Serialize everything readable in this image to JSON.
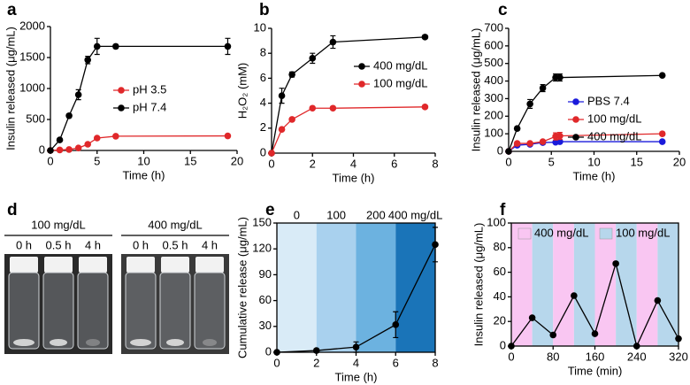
{
  "chart_data": [
    {
      "type": "line",
      "panel": "a",
      "x_label": "Time (h)",
      "y_label": "Insulin released (μg/mL)",
      "xlim": [
        0,
        20
      ],
      "xticks": [
        0,
        5,
        10,
        15,
        20
      ],
      "ylim": [
        0,
        2000
      ],
      "yticks": [
        0,
        500,
        1000,
        1500,
        2000
      ],
      "series": [
        {
          "name": "pH 3.5",
          "color": "#e0282a",
          "x": [
            0,
            1,
            2,
            3,
            4,
            5,
            7,
            19
          ],
          "values": [
            0,
            8,
            15,
            40,
            100,
            200,
            230,
            235
          ],
          "errors": [
            0,
            5,
            5,
            10,
            10,
            20,
            10,
            10
          ]
        },
        {
          "name": "pH 7.4",
          "color": "#000000",
          "x": [
            0,
            1,
            2,
            3,
            4,
            5,
            7,
            19
          ],
          "values": [
            0,
            170,
            560,
            900,
            1460,
            1680,
            1680,
            1680
          ],
          "errors": [
            0,
            20,
            30,
            80,
            60,
            130,
            30,
            130
          ]
        }
      ]
    },
    {
      "type": "line",
      "panel": "b",
      "x_label": "Time (h)",
      "y_label": "H₂O₂ (mM)",
      "xlim": [
        0,
        8
      ],
      "xticks": [
        0,
        2,
        4,
        6,
        8
      ],
      "ylim": [
        0,
        10
      ],
      "yticks": [
        0,
        2,
        4,
        6,
        8,
        10
      ],
      "series": [
        {
          "name": "400 mg/dL",
          "color": "#000000",
          "x": [
            0,
            0.5,
            1,
            2,
            3,
            7.5
          ],
          "values": [
            0,
            4.6,
            6.3,
            7.6,
            8.9,
            9.3
          ],
          "errors": [
            0,
            0.6,
            0.2,
            0.4,
            0.5,
            0.1
          ]
        },
        {
          "name": "100 mg/dL",
          "color": "#e0282a",
          "x": [
            0,
            0.5,
            1,
            2,
            3,
            7.5
          ],
          "values": [
            0,
            1.9,
            2.7,
            3.6,
            3.6,
            3.7
          ],
          "errors": [
            0,
            0.1,
            0.1,
            0.1,
            0.1,
            0.1
          ]
        }
      ]
    },
    {
      "type": "line",
      "panel": "c",
      "x_label": "Time (h)",
      "y_label": "Insulin released (μg/mL)",
      "xlim": [
        0,
        20
      ],
      "xticks": [
        0,
        5,
        10,
        15,
        20
      ],
      "ylim": [
        0,
        700
      ],
      "yticks": [
        0,
        100,
        200,
        300,
        400,
        500,
        600,
        700
      ],
      "series": [
        {
          "name": "PBS 7.4",
          "color": "#1a1adb",
          "x": [
            0,
            1,
            2.5,
            4,
            5.5,
            6,
            18
          ],
          "values": [
            0,
            35,
            40,
            50,
            52,
            55,
            55
          ],
          "errors": [
            0,
            5,
            5,
            10,
            8,
            8,
            5
          ]
        },
        {
          "name": "100 mg/dL",
          "color": "#e0282a",
          "x": [
            0,
            1,
            2.5,
            4,
            5.5,
            6,
            18
          ],
          "values": [
            0,
            45,
            45,
            55,
            85,
            88,
            100
          ],
          "errors": [
            0,
            8,
            8,
            8,
            20,
            20,
            10
          ]
        },
        {
          "name": "400 mg/dL",
          "color": "#000000",
          "x": [
            0,
            1,
            2.5,
            4,
            5.5,
            6,
            18
          ],
          "values": [
            0,
            130,
            270,
            360,
            420,
            420,
            432
          ],
          "errors": [
            0,
            10,
            25,
            20,
            20,
            20,
            5
          ]
        }
      ]
    },
    {
      "type": "photo",
      "panel": "d",
      "groups": [
        {
          "label": "100 mg/dL",
          "vials": [
            "0 h",
            "0.5 h",
            "4 h"
          ]
        },
        {
          "label": "400 mg/dL",
          "vials": [
            "0 h",
            "0.5 h",
            "4 h"
          ]
        }
      ]
    },
    {
      "type": "line",
      "panel": "e",
      "x_label": "Time (h)",
      "y_label": "Cumulative release (μg/mL)",
      "xlim": [
        0,
        8
      ],
      "xticks": [
        0,
        2,
        4,
        6,
        8
      ],
      "ylim": [
        0,
        150
      ],
      "yticks": [
        0,
        30,
        60,
        90,
        120,
        150
      ],
      "band_edges": [
        0,
        2,
        4,
        6,
        8
      ],
      "band_labels": [
        "0",
        "100",
        "200",
        "400 mg/dL"
      ],
      "band_colors": [
        "#d9ebf7",
        "#a9d1ee",
        "#6cb2e0",
        "#1a74b8"
      ],
      "series": [
        {
          "color": "#000000",
          "x": [
            0,
            2,
            4,
            6,
            8
          ],
          "values": [
            0,
            2,
            6,
            32,
            125
          ],
          "errors": [
            0,
            2,
            6,
            15,
            20
          ]
        }
      ]
    },
    {
      "type": "line",
      "panel": "f",
      "x_label": "Time (min)",
      "y_label": "Insulin released (μg/mL)",
      "xlim": [
        0,
        320
      ],
      "xticks": [
        0,
        80,
        160,
        240,
        320
      ],
      "ylim": [
        0,
        100
      ],
      "yticks": [
        0,
        20,
        40,
        60,
        80,
        100
      ],
      "band_edges": [
        0,
        40,
        80,
        120,
        160,
        200,
        240,
        280,
        320
      ],
      "phases": [
        {
          "name": "400 mg/dL",
          "color": "#f9c6f2"
        },
        {
          "name": "100 mg/dL",
          "color": "#b7d7ec"
        }
      ],
      "series": [
        {
          "color": "#000000",
          "x": [
            0,
            40,
            80,
            120,
            160,
            200,
            240,
            280,
            320
          ],
          "values": [
            0,
            23,
            9,
            41,
            10,
            67,
            0,
            37,
            6
          ]
        }
      ]
    }
  ]
}
